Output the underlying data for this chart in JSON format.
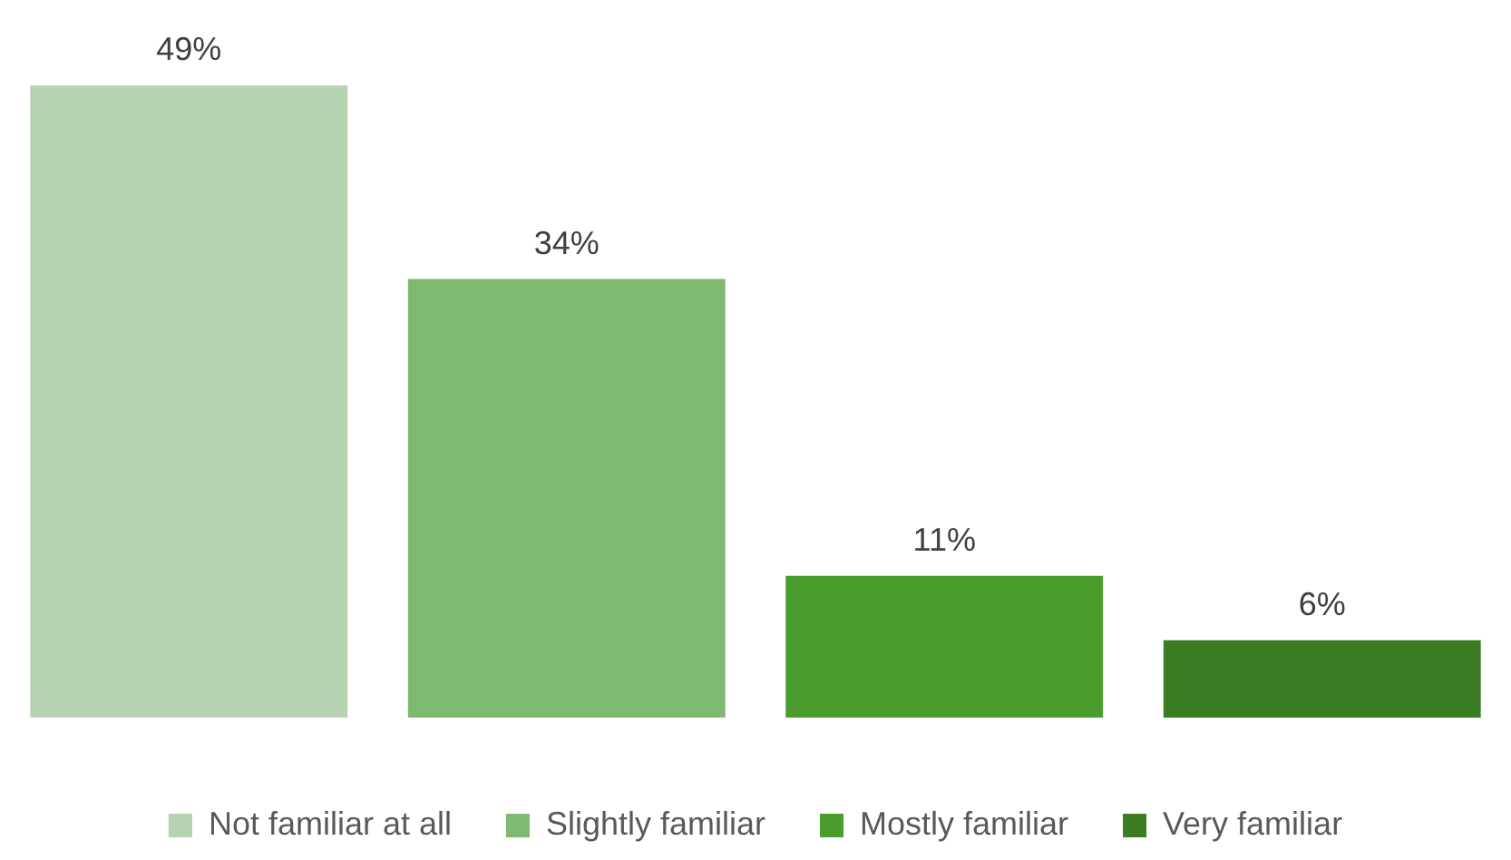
{
  "chart_data": {
    "type": "bar",
    "categories": [
      null
    ],
    "series": [
      {
        "name": "Not familiar at all",
        "color": "#b5d3b0",
        "values": [
          49
        ],
        "value_labels": [
          "49%"
        ]
      },
      {
        "name": "Slightly familiar",
        "color": "#7fb871",
        "values": [
          34
        ],
        "value_labels": [
          "34%"
        ]
      },
      {
        "name": "Mostly familiar",
        "color": "#4a9c2c",
        "values": [
          11
        ],
        "value_labels": [
          "11%"
        ]
      },
      {
        "name": "Very familiar",
        "color": "#3a7d22",
        "values": [
          6
        ],
        "value_labels": [
          "6%"
        ]
      }
    ],
    "legend": "bottom",
    "grid": false
  }
}
